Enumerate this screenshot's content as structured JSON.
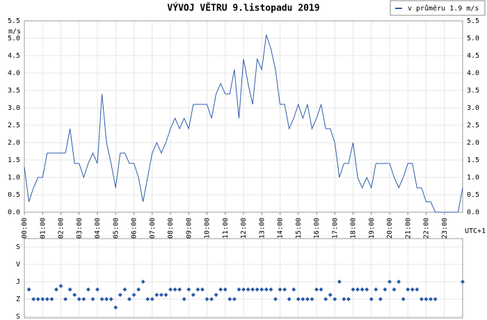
{
  "chart_data": [
    {
      "type": "line",
      "title": "VÝVOJ VĚTRU  9.listopadu 2019",
      "ylabel": "m/s",
      "xlabel": "UTC+1",
      "x": [
        0,
        0.25,
        0.5,
        0.75,
        1,
        1.25,
        1.5,
        1.75,
        2,
        2.25,
        2.5,
        2.75,
        3,
        3.25,
        3.5,
        3.75,
        4,
        4.25,
        4.5,
        4.75,
        5,
        5.25,
        5.5,
        5.75,
        6,
        6.25,
        6.5,
        6.75,
        7,
        7.25,
        7.5,
        7.75,
        8,
        8.25,
        8.5,
        8.75,
        9,
        9.25,
        9.5,
        9.75,
        10,
        10.25,
        10.5,
        10.75,
        11,
        11.25,
        11.5,
        11.75,
        12,
        12.25,
        12.5,
        12.75,
        13,
        13.25,
        13.5,
        13.75,
        14,
        14.25,
        14.5,
        14.75,
        15,
        15.25,
        15.5,
        15.75,
        16,
        16.25,
        16.5,
        16.75,
        17,
        17.25,
        17.5,
        17.75,
        18,
        18.25,
        18.5,
        18.75,
        19,
        19.25,
        19.5,
        19.75,
        20,
        20.25,
        20.5,
        20.75,
        21,
        21.25,
        21.5,
        21.75,
        22,
        22.25,
        22.5,
        22.75,
        23,
        23.25,
        23.5,
        23.75,
        24
      ],
      "series": [
        {
          "name": "v průměru 1.9 m/s",
          "color": "#2a5aa8",
          "values": [
            1.3,
            0.3,
            0.7,
            1.0,
            1.0,
            1.7,
            1.7,
            1.7,
            1.7,
            1.7,
            2.4,
            1.4,
            1.4,
            1.0,
            1.4,
            1.7,
            1.4,
            3.4,
            2.0,
            1.4,
            0.7,
            1.7,
            1.7,
            1.4,
            1.4,
            1.0,
            0.3,
            1.0,
            1.7,
            2.0,
            1.7,
            2.0,
            2.4,
            2.7,
            2.4,
            2.7,
            2.4,
            3.1,
            3.1,
            3.1,
            3.1,
            2.7,
            3.4,
            3.7,
            3.4,
            3.4,
            4.1,
            2.7,
            4.4,
            3.7,
            3.1,
            4.4,
            4.1,
            5.1,
            4.7,
            4.1,
            3.1,
            3.1,
            2.4,
            2.7,
            3.1,
            2.7,
            3.1,
            2.4,
            2.7,
            3.1,
            2.4,
            2.4,
            2.0,
            1.0,
            1.4,
            1.4,
            2.0,
            1.0,
            0.7,
            1.0,
            0.7,
            1.4,
            1.4,
            1.4,
            1.4,
            1.0,
            0.7,
            1.0,
            1.4,
            1.4,
            0.7,
            0.7,
            0.3,
            0.3,
            0.0,
            0.0,
            0.0,
            0.0,
            0.0,
            0.0,
            0.7
          ]
        }
      ],
      "xlim": [
        0,
        24
      ],
      "xticks": [
        {
          "value": 0,
          "label": "00:00"
        },
        {
          "value": 1,
          "label": "01:00"
        },
        {
          "value": 2,
          "label": "02:00"
        },
        {
          "value": 3,
          "label": "03:00"
        },
        {
          "value": 4,
          "label": "04:00"
        },
        {
          "value": 5,
          "label": "05:00"
        },
        {
          "value": 6,
          "label": "06:00"
        },
        {
          "value": 7,
          "label": "07:00"
        },
        {
          "value": 8,
          "label": "08:00"
        },
        {
          "value": 9,
          "label": "09:00"
        },
        {
          "value": 10,
          "label": "10:00"
        },
        {
          "value": 11,
          "label": "11:00"
        },
        {
          "value": 12,
          "label": "12:00"
        },
        {
          "value": 13,
          "label": "13:00"
        },
        {
          "value": 14,
          "label": "14:00"
        },
        {
          "value": 15,
          "label": "15:00"
        },
        {
          "value": 16,
          "label": "16:00"
        },
        {
          "value": 17,
          "label": "17:00"
        },
        {
          "value": 18,
          "label": "18:00"
        },
        {
          "value": 19,
          "label": "19:00"
        },
        {
          "value": 20,
          "label": "20:00"
        },
        {
          "value": 21,
          "label": "21:00"
        },
        {
          "value": 22,
          "label": "22:00"
        },
        {
          "value": 23,
          "label": "23:00"
        }
      ],
      "ylim": [
        0,
        5.5
      ],
      "yticks": [
        {
          "value": 0,
          "label": "0.0"
        },
        0.5,
        {
          "value": 1,
          "label": "1.0"
        },
        1.5,
        {
          "value": 2,
          "label": "2.0"
        },
        2.5,
        {
          "value": 3,
          "label": "3.0"
        },
        3.5,
        {
          "value": 4,
          "label": "4.0"
        },
        4.5,
        {
          "value": 5,
          "label": "5.0"
        },
        5.5
      ],
      "grid": true,
      "legend": "top-right"
    },
    {
      "type": "scatter",
      "x": [
        0,
        0.25,
        0.5,
        0.75,
        1,
        1.25,
        1.5,
        1.75,
        2,
        2.25,
        2.5,
        2.75,
        3,
        3.25,
        3.5,
        3.75,
        4,
        4.25,
        4.5,
        4.75,
        5,
        5.25,
        5.5,
        5.75,
        6,
        6.25,
        6.5,
        6.75,
        7,
        7.25,
        7.5,
        7.75,
        8,
        8.25,
        8.5,
        8.75,
        9,
        9.25,
        9.5,
        9.75,
        10,
        10.25,
        10.5,
        10.75,
        11,
        11.25,
        11.5,
        11.75,
        12,
        12.25,
        12.5,
        12.75,
        13,
        13.25,
        13.5,
        13.75,
        14,
        14.25,
        14.5,
        14.75,
        15,
        15.25,
        15.5,
        15.75,
        16,
        16.25,
        16.5,
        16.75,
        17,
        17.25,
        17.5,
        17.75,
        18,
        18.25,
        18.5,
        18.75,
        19,
        19.25,
        19.5,
        19.75,
        20,
        20.25,
        20.5,
        20.75,
        21,
        21.25,
        21.5,
        21.75,
        22,
        22.25,
        22.5,
        22.75,
        23,
        23.25,
        23.5,
        23.75,
        24
      ],
      "series": [
        {
          "color": "#2a5aa8",
          "values": [
            null,
            140,
            90,
            90,
            90,
            90,
            90,
            140,
            158,
            90,
            140,
            112,
            90,
            90,
            140,
            90,
            140,
            90,
            90,
            90,
            47,
            112,
            140,
            90,
            112,
            140,
            180,
            90,
            90,
            112,
            112,
            112,
            140,
            140,
            140,
            90,
            140,
            112,
            140,
            140,
            90,
            90,
            112,
            140,
            140,
            90,
            90,
            140,
            140,
            140,
            140,
            140,
            140,
            140,
            140,
            90,
            140,
            140,
            90,
            140,
            90,
            90,
            90,
            90,
            140,
            140,
            90,
            112,
            90,
            180,
            90,
            90,
            140,
            140,
            140,
            140,
            90,
            140,
            90,
            140,
            180,
            140,
            180,
            90,
            140,
            140,
            140,
            90,
            90,
            90,
            90,
            null,
            null,
            null,
            null,
            null,
            180
          ]
        }
      ],
      "xlim": [
        0,
        24
      ],
      "ylim": [
        0,
        360
      ],
      "yticks": [
        {
          "value": 0,
          "label": "S"
        },
        {
          "value": 90,
          "label": "Z"
        },
        {
          "value": 180,
          "label": "J"
        },
        {
          "value": 270,
          "label": "V"
        },
        {
          "value": 360,
          "label": "S"
        }
      ],
      "grid": true
    }
  ]
}
